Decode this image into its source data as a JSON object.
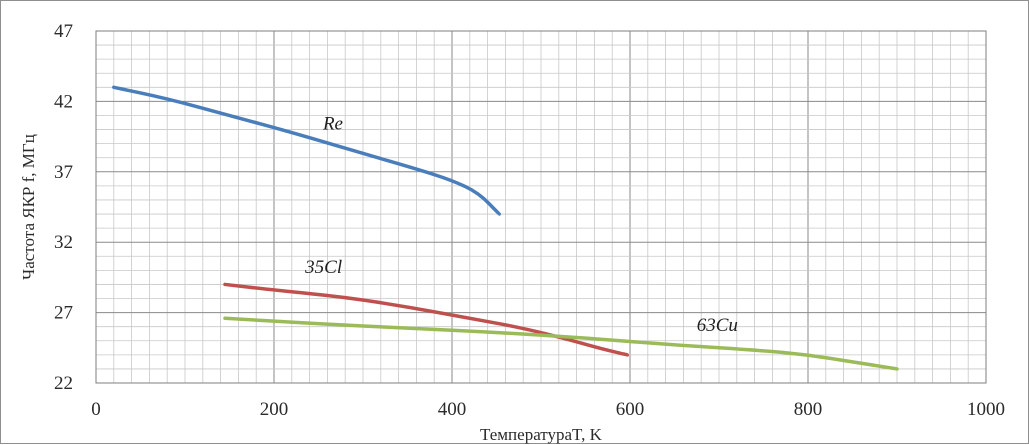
{
  "chart_data": {
    "type": "line",
    "title": "",
    "xlabel": "ТемпературaT, K",
    "ylabel": "Частота ЯКР f, МГц",
    "xlim": [
      0,
      1000
    ],
    "ylim": [
      22,
      47
    ],
    "x_ticks": [
      "0",
      "200",
      "400",
      "600",
      "800",
      "1000"
    ],
    "y_ticks": [
      "22",
      "27",
      "32",
      "37",
      "42",
      "47"
    ],
    "grid": true,
    "legend": "none",
    "series": [
      {
        "name": "Re",
        "color": "#4a7ebb",
        "points": [
          [
            20,
            43.0
          ],
          [
            80,
            42.2
          ],
          [
            150,
            41.0
          ],
          [
            220,
            39.8
          ],
          [
            300,
            38.3
          ],
          [
            360,
            37.2
          ],
          [
            400,
            36.4
          ],
          [
            430,
            35.5
          ],
          [
            453,
            34.0
          ]
        ]
      },
      {
        "name": "35Cl",
        "color": "#c0504d",
        "points": [
          [
            145,
            29.0
          ],
          [
            200,
            28.6
          ],
          [
            280,
            28.1
          ],
          [
            350,
            27.4
          ],
          [
            420,
            26.6
          ],
          [
            480,
            25.9
          ],
          [
            530,
            25.1
          ],
          [
            570,
            24.4
          ],
          [
            597,
            24.0
          ]
        ]
      },
      {
        "name": "63Cu",
        "color": "#9bbb59",
        "points": [
          [
            145,
            26.6
          ],
          [
            250,
            26.2
          ],
          [
            350,
            25.9
          ],
          [
            450,
            25.6
          ],
          [
            550,
            25.2
          ],
          [
            650,
            24.7
          ],
          [
            750,
            24.3
          ],
          [
            800,
            24.0
          ],
          [
            850,
            23.5
          ],
          [
            900,
            23.0
          ]
        ]
      }
    ],
    "annotations": [
      {
        "text": "Re",
        "x": 255,
        "y": 40.0
      },
      {
        "text": "35Cl",
        "x": 235,
        "y": 29.8
      },
      {
        "text": "63Cu",
        "x": 675,
        "y": 25.7
      }
    ]
  }
}
